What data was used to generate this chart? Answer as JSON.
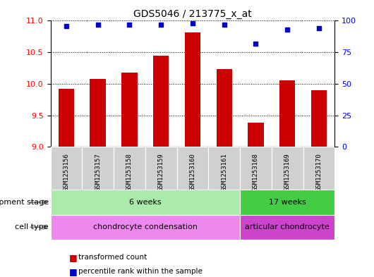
{
  "title": "GDS5046 / 213775_x_at",
  "samples": [
    "GSM1253156",
    "GSM1253157",
    "GSM1253158",
    "GSM1253159",
    "GSM1253160",
    "GSM1253161",
    "GSM1253168",
    "GSM1253169",
    "GSM1253170"
  ],
  "transformed_count": [
    9.92,
    10.08,
    10.18,
    10.45,
    10.82,
    10.23,
    9.38,
    10.05,
    9.9
  ],
  "percentile_rank": [
    96,
    97,
    97,
    97,
    98,
    97,
    82,
    93,
    94
  ],
  "ylim_left": [
    9.0,
    11.0
  ],
  "ylim_right": [
    0,
    100
  ],
  "yticks_left": [
    9.0,
    9.5,
    10.0,
    10.5,
    11.0
  ],
  "yticks_right": [
    0,
    25,
    50,
    75,
    100
  ],
  "bar_color": "#cc0000",
  "dot_color": "#0000cc",
  "background_color": "#ffffff",
  "dev_stage_groups": [
    {
      "label": "6 weeks",
      "start": 0,
      "end": 6,
      "color": "#aaeaaa"
    },
    {
      "label": "17 weeks",
      "start": 6,
      "end": 9,
      "color": "#44cc44"
    }
  ],
  "cell_type_groups": [
    {
      "label": "chondrocyte condensation",
      "start": 0,
      "end": 6,
      "color": "#ee88ee"
    },
    {
      "label": "articular chondrocyte",
      "start": 6,
      "end": 9,
      "color": "#cc44cc"
    }
  ],
  "left_label_dev": "development stage",
  "left_label_cell": "cell type",
  "legend_bar": "transformed count",
  "legend_dot": "percentile rank within the sample",
  "sample_bg_color": "#d0d0d0"
}
